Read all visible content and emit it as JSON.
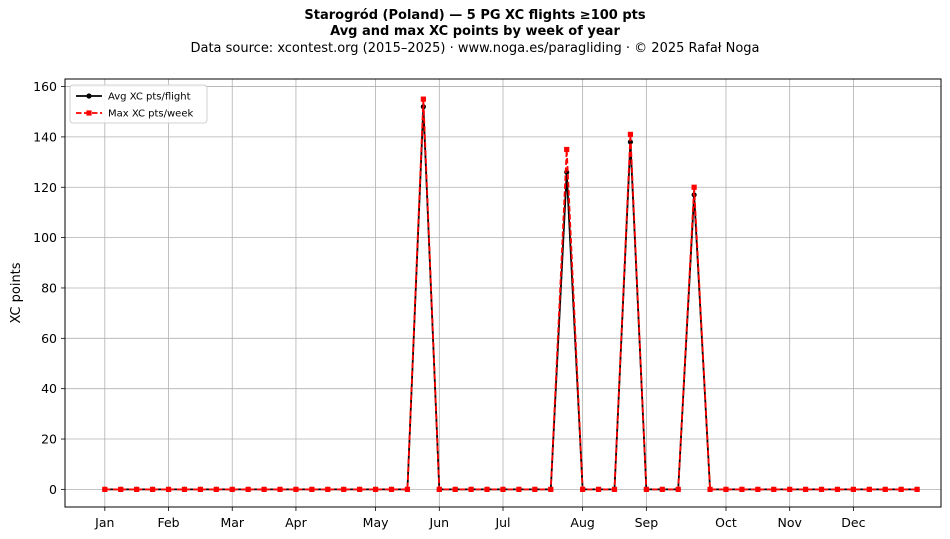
{
  "chart_data": {
    "type": "line",
    "title": "Starogród (Poland)  —  5 PG XC flights ≥100 pts",
    "subtitle": "Avg and max XC points by week of year",
    "source_note": "Data source: xcontest.org (2015–2025)  ·  www.noga.es/paragliding  ·  © 2025 Rafał Noga",
    "xlabel": "",
    "ylabel": "XC points",
    "ylim": [
      -7,
      163
    ],
    "xlim": [
      -1.5,
      53.5
    ],
    "yticks": [
      0,
      20,
      40,
      60,
      80,
      100,
      120,
      140,
      160
    ],
    "month_ticks": [
      {
        "label": "Jan",
        "week": 1
      },
      {
        "label": "Feb",
        "week": 5
      },
      {
        "label": "Mar",
        "week": 9
      },
      {
        "label": "Apr",
        "week": 13
      },
      {
        "label": "May",
        "week": 18
      },
      {
        "label": "Jun",
        "week": 22
      },
      {
        "label": "Jul",
        "week": 26
      },
      {
        "label": "Aug",
        "week": 31
      },
      {
        "label": "Sep",
        "week": 35
      },
      {
        "label": "Oct",
        "week": 40
      },
      {
        "label": "Nov",
        "week": 44
      },
      {
        "label": "Dec",
        "week": 48
      }
    ],
    "grid": true,
    "legend_position": "top-left",
    "x": [
      1,
      2,
      3,
      4,
      5,
      6,
      7,
      8,
      9,
      10,
      11,
      12,
      13,
      14,
      15,
      16,
      17,
      18,
      19,
      20,
      21,
      22,
      23,
      24,
      25,
      26,
      27,
      28,
      29,
      30,
      31,
      32,
      33,
      34,
      35,
      36,
      37,
      38,
      39,
      40,
      41,
      42,
      43,
      44,
      45,
      46,
      47,
      48,
      49,
      50,
      51,
      52
    ],
    "series": [
      {
        "name": "Avg XC pts/flight",
        "color": "#000000",
        "marker": "circle",
        "linestyle": "solid",
        "values": [
          0,
          0,
          0,
          0,
          0,
          0,
          0,
          0,
          0,
          0,
          0,
          0,
          0,
          0,
          0,
          0,
          0,
          0,
          0,
          0,
          152,
          0,
          0,
          0,
          0,
          0,
          0,
          0,
          0,
          126,
          0,
          0,
          0,
          138,
          0,
          0,
          0,
          117,
          0,
          0,
          0,
          0,
          0,
          0,
          0,
          0,
          0,
          0,
          0,
          0,
          0,
          0
        ]
      },
      {
        "name": "Max XC pts/week",
        "color": "#ff0000",
        "marker": "square",
        "linestyle": "dashed",
        "values": [
          0,
          0,
          0,
          0,
          0,
          0,
          0,
          0,
          0,
          0,
          0,
          0,
          0,
          0,
          0,
          0,
          0,
          0,
          0,
          0,
          155,
          0,
          0,
          0,
          0,
          0,
          0,
          0,
          0,
          135,
          0,
          0,
          0,
          141,
          0,
          0,
          0,
          120,
          0,
          0,
          0,
          0,
          0,
          0,
          0,
          0,
          0,
          0,
          0,
          0,
          0,
          0
        ]
      }
    ]
  }
}
